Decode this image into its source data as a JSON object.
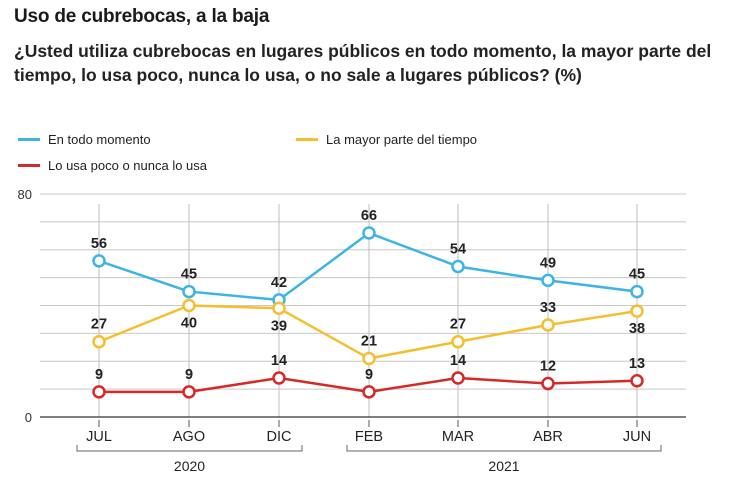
{
  "title": "Uso de cubrebocas, a la baja",
  "subtitle": "¿Usted utiliza cubrebocas en lugares públicos en todo momento, la mayor parte del tiempo, lo usa poco, nunca lo usa, o no sale a lugares públicos? (%)",
  "chart_data": {
    "type": "line",
    "categories": [
      "JUL",
      "AGO",
      "DIC",
      "FEB",
      "MAR",
      "ABR",
      "JUN"
    ],
    "year_groups": [
      {
        "label": "2020",
        "categories": [
          "JUL",
          "AGO",
          "DIC"
        ]
      },
      {
        "label": "2021",
        "categories": [
          "FEB",
          "MAR",
          "ABR",
          "JUN"
        ]
      }
    ],
    "ylim": [
      0,
      80
    ],
    "y_tick_labels": [
      "0",
      "80"
    ],
    "grid": true,
    "legend_position": "top-left",
    "series": [
      {
        "name": "En todo momento",
        "color": "#3cb4e6",
        "values": [
          56,
          45,
          42,
          66,
          54,
          49,
          45
        ]
      },
      {
        "name": "La mayor parte del tiempo",
        "color": "#f5be2d",
        "values": [
          27,
          40,
          39,
          21,
          27,
          33,
          38
        ]
      },
      {
        "name": "Lo usa poco o nunca lo usa",
        "color": "#d72828",
        "values": [
          9,
          9,
          14,
          9,
          14,
          12,
          13
        ]
      }
    ]
  }
}
